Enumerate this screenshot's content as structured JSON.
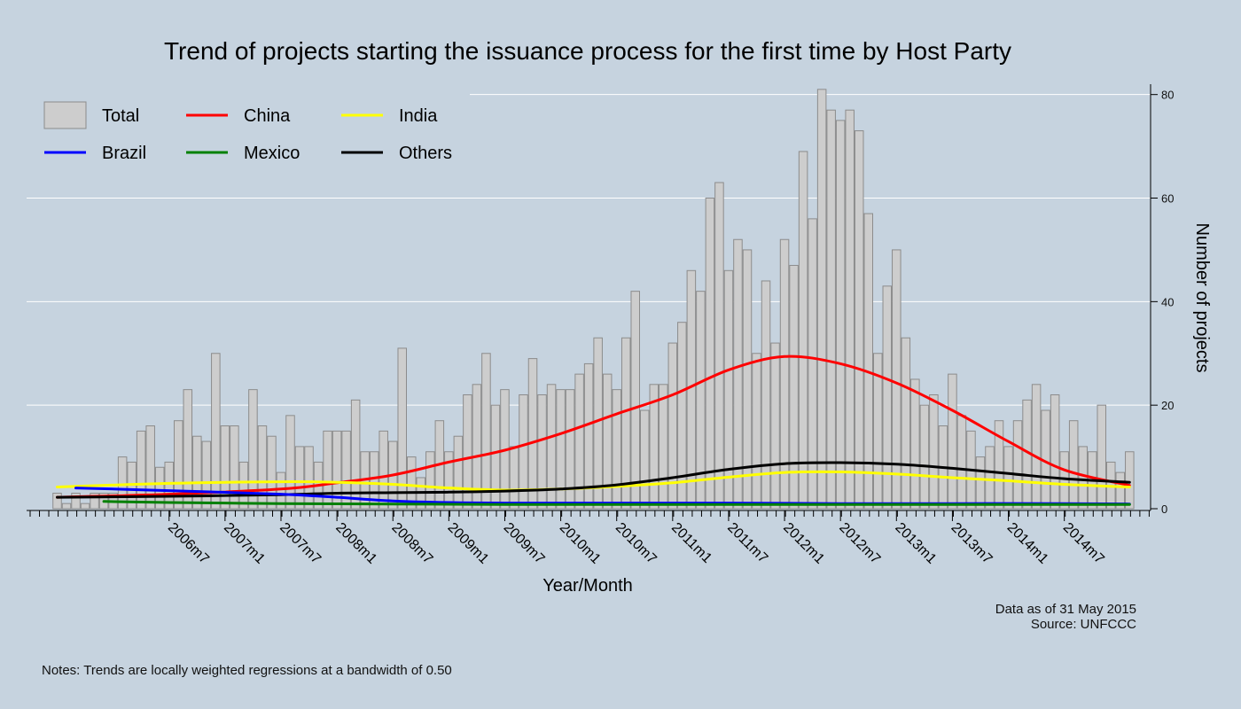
{
  "notes": {
    "bottom": "Notes: Trends are locally weighted regressions at a bandwidth of 0.50",
    "data_as_of": "Data as of 31 May 2015",
    "source": "Source: UNFCCC"
  },
  "chart_data": {
    "type": "bar",
    "title": "Trend of projects starting the issuance process for the first time by Host Party",
    "xlabel": "Year/Month",
    "ylabel": "Number of projects",
    "ylim": [
      0,
      82
    ],
    "y_ticks": [
      0,
      20,
      40,
      60,
      80
    ],
    "y_axis_side": "right",
    "grid": "horizontal",
    "legend_position": "top-left",
    "x_tick_labels": [
      "2006m7",
      "2007m1",
      "2007m7",
      "2008m1",
      "2008m7",
      "2009m1",
      "2009m7",
      "2010m1",
      "2010m7",
      "2011m1",
      "2011m7",
      "2012m1",
      "2012m7",
      "2013m1",
      "2013m7",
      "2014m1",
      "2014m7"
    ],
    "x_tick_month_index": [
      12,
      18,
      24,
      30,
      36,
      42,
      48,
      54,
      60,
      66,
      72,
      78,
      84,
      90,
      96,
      102,
      108
    ],
    "x_first_month": "2005m7",
    "x_last_month": "2015m5",
    "total": {
      "name": "Total",
      "color": "#cdcdcd",
      "values": [
        3,
        1,
        3,
        1,
        3,
        3,
        3,
        10,
        9,
        15,
        16,
        8,
        9,
        17,
        23,
        14,
        13,
        30,
        16,
        16,
        9,
        23,
        16,
        14,
        7,
        18,
        12,
        12,
        9,
        15,
        15,
        15,
        21,
        11,
        11,
        15,
        13,
        31,
        10,
        6,
        11,
        17,
        11,
        14,
        22,
        24,
        30,
        20,
        23,
        12,
        22,
        29,
        22,
        24,
        23,
        23,
        26,
        28,
        33,
        26,
        23,
        33,
        42,
        19,
        24,
        24,
        32,
        36,
        46,
        42,
        60,
        63,
        46,
        52,
        50,
        30,
        44,
        32,
        52,
        47,
        69,
        56,
        81,
        77,
        75,
        77,
        73,
        57,
        30,
        43,
        50,
        33,
        25,
        20,
        22,
        16,
        26,
        18,
        15,
        10,
        12,
        17,
        12,
        17,
        21,
        24,
        19,
        22,
        11,
        17,
        12,
        11,
        20,
        9,
        7,
        11
      ]
    },
    "series": [
      {
        "name": "China",
        "color": "#ff0000",
        "x": [
          0,
          12,
          24,
          30,
          36,
          42,
          48,
          54,
          60,
          66,
          72,
          78,
          84,
          90,
          96,
          102,
          108,
          115
        ],
        "values": [
          2.2,
          2.8,
          3.8,
          5.0,
          6.5,
          9.0,
          11.3,
          14.5,
          18.3,
          22.0,
          26.8,
          29.4,
          28.0,
          24.3,
          19.0,
          13.0,
          7.5,
          4.5
        ]
      },
      {
        "name": "India",
        "color": "#ffff00",
        "x": [
          0,
          12,
          24,
          30,
          36,
          42,
          48,
          54,
          60,
          66,
          72,
          78,
          84,
          90,
          96,
          102,
          108,
          115
        ],
        "values": [
          4.2,
          4.9,
          5.2,
          5.1,
          4.7,
          4.0,
          3.6,
          3.8,
          4.3,
          5.0,
          6.1,
          7.0,
          7.1,
          6.7,
          6.0,
          5.4,
          4.7,
          4.2
        ]
      },
      {
        "name": "Others",
        "color": "#000000",
        "x": [
          0,
          12,
          24,
          30,
          36,
          42,
          48,
          54,
          60,
          66,
          72,
          78,
          84,
          90,
          96,
          102,
          108,
          115
        ],
        "values": [
          2.2,
          2.4,
          2.7,
          3.0,
          3.1,
          3.2,
          3.4,
          3.8,
          4.6,
          6.0,
          7.6,
          8.7,
          8.9,
          8.6,
          7.8,
          6.8,
          5.8,
          5.1
        ]
      },
      {
        "name": "Brazil",
        "color": "#0000ff",
        "x": [
          2,
          12,
          24,
          30,
          36,
          42,
          48,
          60,
          72,
          84,
          96,
          108,
          115
        ],
        "values": [
          4.0,
          3.5,
          2.8,
          2.2,
          1.5,
          1.2,
          1.1,
          1.1,
          1.1,
          1.0,
          1.0,
          1.0,
          0.9
        ]
      },
      {
        "name": "Mexico",
        "color": "#008000",
        "x": [
          5,
          12,
          24,
          36,
          48,
          60,
          72,
          84,
          96,
          108,
          115
        ],
        "values": [
          1.4,
          1.2,
          1.0,
          0.9,
          0.8,
          0.8,
          0.8,
          0.8,
          0.8,
          0.8,
          0.8
        ]
      }
    ],
    "legend": [
      {
        "name": "Total",
        "kind": "box",
        "color": "#cdcdcd"
      },
      {
        "name": "China",
        "kind": "line",
        "color": "#ff0000"
      },
      {
        "name": "India",
        "kind": "line",
        "color": "#ffff00"
      },
      {
        "name": "Brazil",
        "kind": "line",
        "color": "#0000ff"
      },
      {
        "name": "Mexico",
        "kind": "line",
        "color": "#008000"
      },
      {
        "name": "Others",
        "kind": "line",
        "color": "#000000"
      }
    ]
  }
}
